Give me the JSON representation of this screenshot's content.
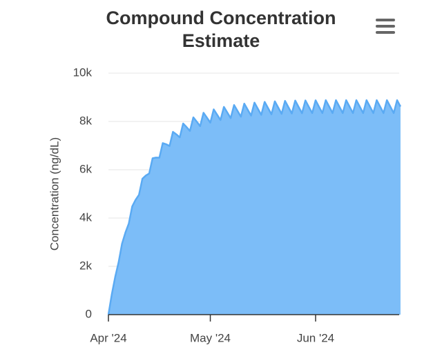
{
  "chart_data": {
    "type": "area",
    "title": "Compound Concentration Estimate",
    "y_label": "Concentration (ng/dL)",
    "categories": [
      "Apr '24",
      null,
      null,
      null,
      null,
      null,
      null,
      null,
      null,
      null,
      null,
      null,
      null,
      null,
      null,
      null,
      null,
      null,
      null,
      null,
      null,
      null,
      null,
      null,
      null,
      null,
      null,
      null,
      null,
      null,
      "May '24",
      null,
      null,
      null,
      null,
      null,
      null,
      null,
      null,
      null,
      null,
      null,
      null,
      null,
      null,
      null,
      null,
      null,
      null,
      null,
      null,
      null,
      null,
      null,
      null,
      null,
      null,
      null,
      null,
      null,
      null,
      "Jun '24",
      null,
      null,
      null,
      null,
      null,
      null,
      null,
      null,
      null,
      null,
      null,
      null,
      null,
      null,
      null,
      null,
      null,
      null,
      null,
      null,
      null,
      null,
      null,
      null,
      null
    ],
    "values": [
      0,
      847,
      1566,
      2169,
      2934,
      3397,
      3775,
      4480,
      4754,
      4964,
      5626,
      5759,
      5846,
      6475,
      6504,
      6499,
      7103,
      7056,
      6983,
      7569,
      7465,
      7341,
      7914,
      7767,
      7607,
      8169,
      7992,
      7804,
      8359,
      8159,
      7950,
      8500,
      8281,
      8058,
      8603,
      8372,
      8138,
      8680,
      8440,
      8197,
      8737,
      8489,
      8241,
      8779,
      8526,
      8273,
      8810,
      8553,
      8296,
      8833,
      8575,
      8315,
      8851,
      8590,
      8329,
      8865,
      8600,
      8340,
      8870,
      8605,
      8345,
      8875,
      8610,
      8347,
      8880,
      8614,
      8347,
      8880,
      8614,
      8347,
      8880,
      8614,
      8347,
      8880,
      8614,
      8347,
      8880,
      8614,
      8347,
      8880,
      8614,
      8347,
      8880,
      8614,
      8347,
      8880,
      8614
    ],
    "color": "#7cbdf8",
    "line_color": "#5aaaf3",
    "ylim": [
      0,
      10000
    ],
    "yticks": [
      0,
      {
        "value": 2000,
        "label": "2k"
      },
      {
        "value": 4000,
        "label": "4k"
      },
      {
        "value": 6000,
        "label": "6k"
      },
      {
        "value": 8000,
        "label": "8k"
      },
      {
        "value": 10000,
        "label": "10k"
      }
    ],
    "grid": true
  }
}
